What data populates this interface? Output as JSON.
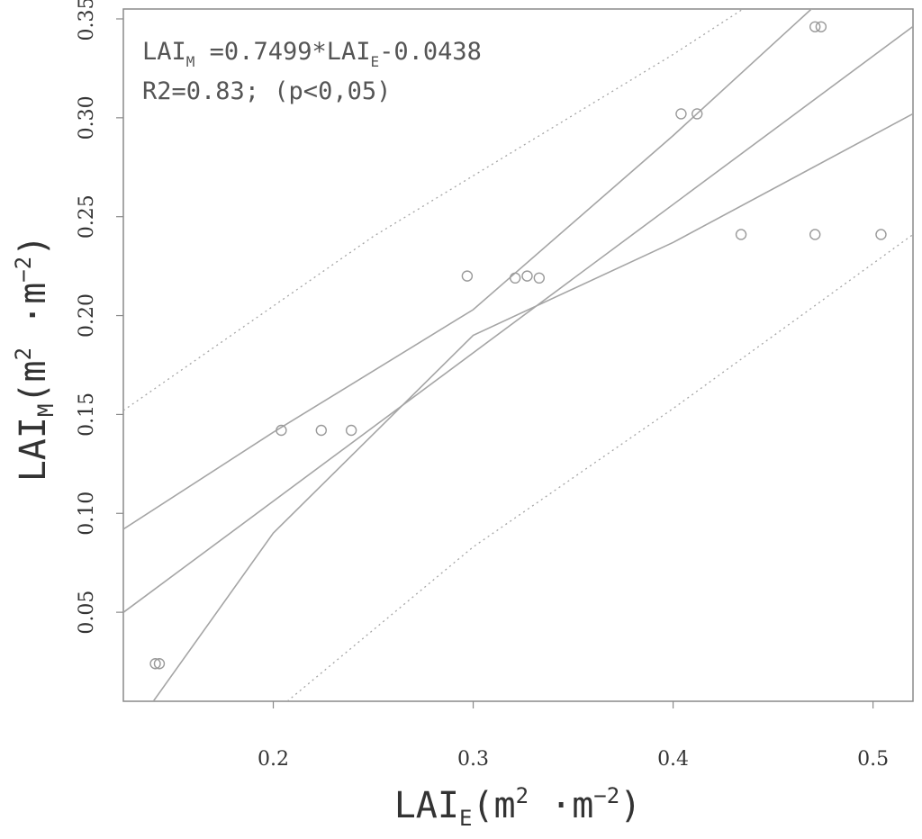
{
  "chart_data": {
    "type": "scatter",
    "title": "",
    "xlabel": {
      "base": "LAI",
      "sub": "E",
      "unit_open": "(m",
      "unit_sup1": "2",
      "unit_mid": " ·m",
      "unit_sup2": "−2",
      "unit_close": ")"
    },
    "ylabel": {
      "base": "LAI",
      "sub": "M",
      "unit_open": "(m",
      "unit_sup1": "2",
      "unit_mid": " ·m",
      "unit_sup2": "−2",
      "unit_close": ")"
    },
    "xlim": [
      0.125,
      0.52
    ],
    "ylim": [
      0.005,
      0.355
    ],
    "x_ticks": [
      0.2,
      0.3,
      0.4,
      0.5
    ],
    "x_tick_labels": [
      "0.2",
      "0.3",
      "0.4",
      "0.5"
    ],
    "y_ticks": [
      0.05,
      0.1,
      0.15,
      0.2,
      0.25,
      0.3,
      0.35
    ],
    "y_tick_labels": [
      "0.05",
      "0.10",
      "0.15",
      "0.20",
      "0.25",
      "0.30",
      "0.35"
    ],
    "grid": false,
    "points": [
      {
        "x": 0.141,
        "y": 0.024
      },
      {
        "x": 0.143,
        "y": 0.024
      },
      {
        "x": 0.204,
        "y": 0.142
      },
      {
        "x": 0.224,
        "y": 0.142
      },
      {
        "x": 0.239,
        "y": 0.142
      },
      {
        "x": 0.297,
        "y": 0.22
      },
      {
        "x": 0.321,
        "y": 0.219
      },
      {
        "x": 0.327,
        "y": 0.22
      },
      {
        "x": 0.333,
        "y": 0.219
      },
      {
        "x": 0.404,
        "y": 0.302
      },
      {
        "x": 0.412,
        "y": 0.302
      },
      {
        "x": 0.434,
        "y": 0.241
      },
      {
        "x": 0.471,
        "y": 0.241
      },
      {
        "x": 0.471,
        "y": 0.346
      },
      {
        "x": 0.474,
        "y": 0.346
      },
      {
        "x": 0.504,
        "y": 0.241
      }
    ],
    "fit_line": {
      "slope": 0.7499,
      "intercept": -0.0438,
      "x_range": [
        0.125,
        0.52
      ]
    },
    "confidence_band": {
      "upper": [
        [
          0.125,
          0.092
        ],
        [
          0.2,
          0.141
        ],
        [
          0.3,
          0.203
        ],
        [
          0.4,
          0.291
        ],
        [
          0.48,
          0.365
        ]
      ],
      "lower": [
        [
          0.14,
          0.005
        ],
        [
          0.2,
          0.09
        ],
        [
          0.3,
          0.19
        ],
        [
          0.4,
          0.237
        ],
        [
          0.52,
          0.302
        ]
      ]
    },
    "prediction_band": {
      "upper": [
        [
          0.125,
          0.152
        ],
        [
          0.25,
          0.24
        ],
        [
          0.4,
          0.332
        ],
        [
          0.435,
          0.355
        ]
      ],
      "lower": [
        [
          0.207,
          0.005
        ],
        [
          0.3,
          0.083
        ],
        [
          0.4,
          0.153
        ],
        [
          0.52,
          0.241
        ]
      ]
    },
    "annotations": {
      "eq_prefix": "LAI",
      "eq_sub_m": "M",
      "eq_mid": " =0.7499*LAI",
      "eq_sub_e": "E",
      "eq_tail": "-0.0438",
      "stats": "R2=0.83;   (p<0,05)"
    },
    "colors": {
      "axis": "#8a8a8a",
      "points": "#9a9a9a",
      "lines": "#a5a5a5",
      "text": "#333333"
    }
  }
}
